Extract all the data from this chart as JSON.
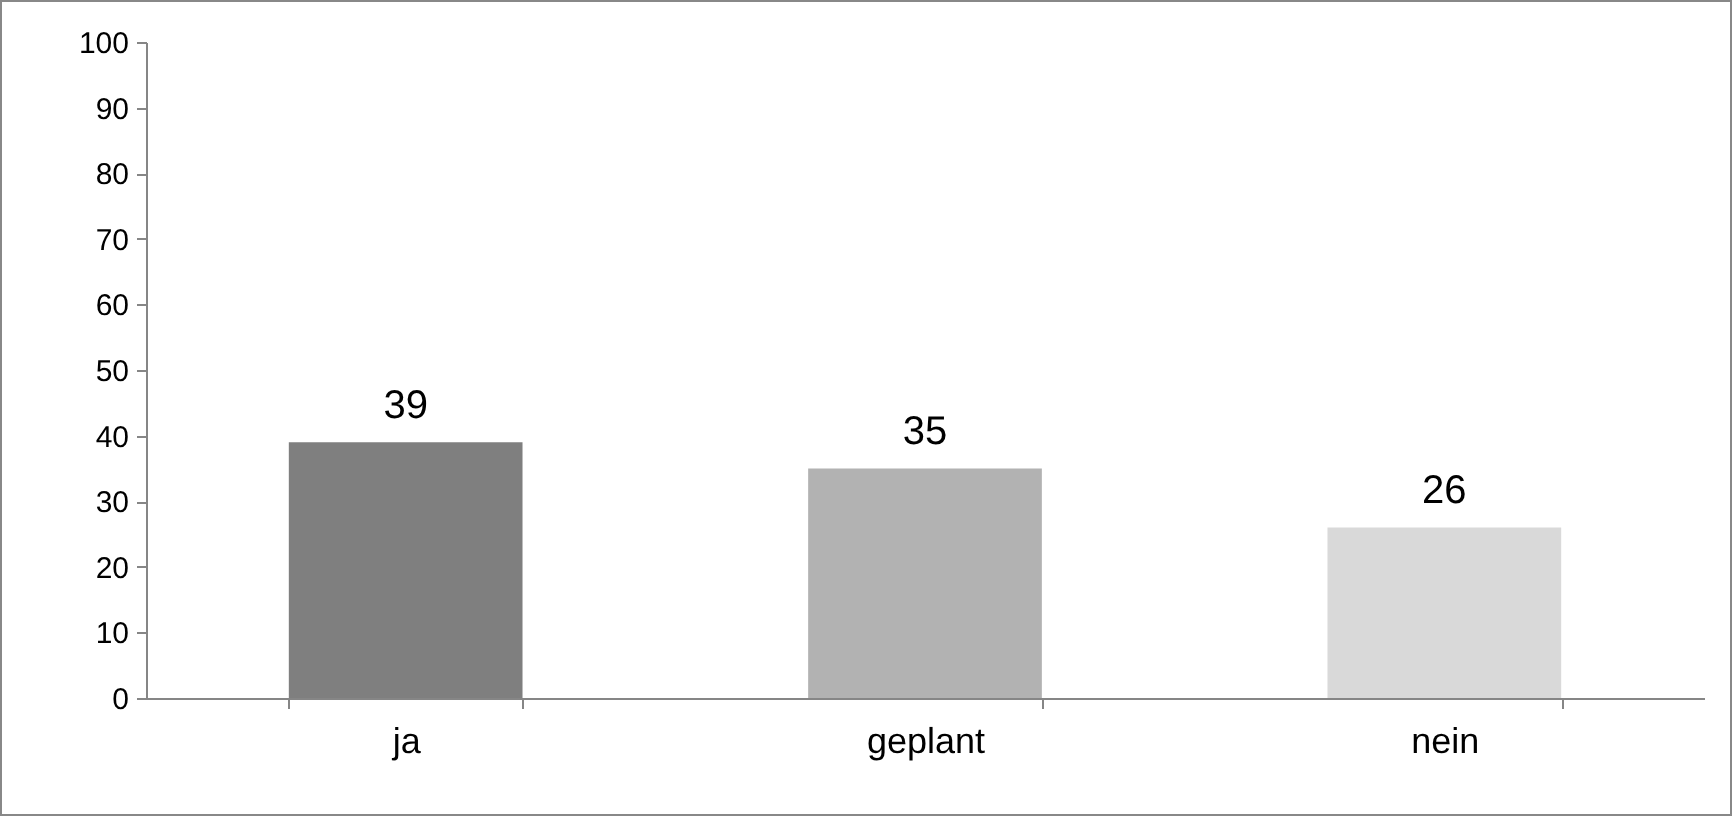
{
  "chart_data": {
    "type": "bar",
    "categories": [
      "ja",
      "geplant",
      "nein"
    ],
    "values": [
      39,
      35,
      26
    ],
    "colors": [
      "#7f7f7f",
      "#b2b2b2",
      "#d9d9d9"
    ],
    "ylim": [
      0,
      100
    ],
    "yticks": [
      0,
      10,
      20,
      30,
      40,
      50,
      60,
      70,
      80,
      90,
      100
    ],
    "grid": false,
    "data_labels": true
  }
}
